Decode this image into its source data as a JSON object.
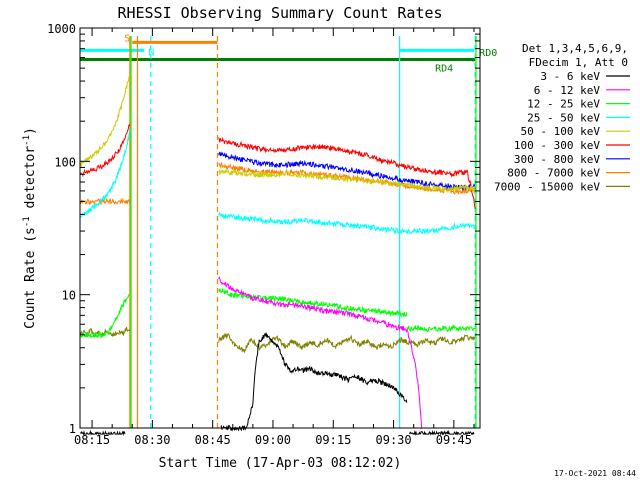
{
  "chart_data": {
    "type": "line",
    "title": "RHESSI Observing Summary Count Rates",
    "xlabel": "Start Time (17-Apr-03 08:12:02)",
    "ylabel": "Count Rate (s",
    "ylabel_sup": "-1",
    "ylabel_mid": " detector",
    "ylabel_end": ")",
    "yscale": "log",
    "xlim_min": [
      12.0,
      111.5
    ],
    "ylim": [
      1,
      1000
    ],
    "xticks": [
      {
        "min": 15,
        "label": "08:15"
      },
      {
        "min": 30,
        "label": "08:30"
      },
      {
        "min": 45,
        "label": "08:45"
      },
      {
        "min": 60,
        "label": "09:00"
      },
      {
        "min": 75,
        "label": "09:15"
      },
      {
        "min": 90,
        "label": "09:30"
      },
      {
        "min": 105,
        "label": "09:45"
      }
    ],
    "yticks": [
      {
        "value": 1,
        "label": "1"
      },
      {
        "value": 10,
        "label": "10"
      },
      {
        "value": 100,
        "label": "100"
      },
      {
        "value": 1000,
        "label": "1000"
      }
    ],
    "legend": {
      "placement": "right",
      "header": [
        "Det 1,3,4,5,6,9,",
        "FDecim 1, Att 0"
      ]
    },
    "series": [
      {
        "name": "3 - 6 keV",
        "color": "#000000",
        "segments": [
          {
            "start": 12.0,
            "end": 23.2,
            "values": [
              0.9,
              0.9
            ]
          },
          {
            "start": 47.0,
            "end": 93.3,
            "values": [
              1.0,
              1.0,
              1.0,
              1.0,
              1.0,
              1.5,
              4.5,
              5.0,
              4.5,
              4.0,
              3.0,
              2.7,
              2.8,
              2.7,
              2.8,
              2.6,
              2.6,
              2.5,
              2.5,
              2.4,
              2.3,
              2.5,
              2.3,
              2.2,
              2.3,
              2.2,
              2.1,
              2.0,
              1.8,
              1.6
            ]
          },
          {
            "start": 94.0,
            "end": 110.0,
            "values": [
              0.9,
              0.9
            ]
          }
        ]
      },
      {
        "name": "6 - 12 keV",
        "color": "#ff00ff",
        "segments": [
          {
            "start": 46.5,
            "end": 93.3,
            "values": [
              13,
              12,
              11,
              10.5,
              10,
              9.5,
              9.3,
              9,
              8.8,
              8.6,
              8.4,
              8.5,
              8.3,
              8.2,
              8.0,
              7.8,
              7.6,
              7.5,
              7.4,
              7.3,
              7.2,
              7.0,
              6.8,
              6.6,
              6.4,
              6.2,
              6.0,
              5.8,
              5.6,
              5.5
            ]
          },
          {
            "start": 93.3,
            "end": 97.0,
            "values": [
              5.5,
              1.0
            ]
          }
        ]
      },
      {
        "name": "12 - 25 keV",
        "color": "#00ff00",
        "segments": [
          {
            "start": 12.0,
            "end": 24.2,
            "values": [
              5,
              5,
              5,
              5,
              5,
              5,
              5,
              5,
              5.5,
              6,
              7,
              8,
              9,
              10
            ]
          },
          {
            "start": 46.5,
            "end": 93.3,
            "values": [
              11,
              10.5,
              10,
              9.8,
              9.7,
              9.6,
              9.5,
              9.5,
              9.4,
              9.3,
              9.2,
              9.0,
              8.9,
              8.8,
              8.7,
              8.6,
              8.5,
              8.3,
              8.2,
              8.0,
              7.9,
              7.8,
              7.7,
              7.6,
              7.5,
              7.5,
              7.4,
              7.3,
              7.2,
              7.1
            ]
          },
          {
            "start": 93.3,
            "end": 110.3,
            "values": [
              5.5,
              5.6,
              5.7,
              5.6,
              5.5,
              5.6,
              5.5,
              5.6,
              5.5,
              5.7,
              5.6,
              5.5,
              5.6,
              5.5
            ]
          }
        ]
      },
      {
        "name": "25 - 50 keV",
        "color": "#00ffff",
        "segments": [
          {
            "start": 12.0,
            "end": 24.5,
            "values": [
              38,
              40,
              42,
              44,
              46,
              49,
              52,
              56,
              62,
              70,
              82,
              100,
              125,
              175
            ]
          },
          {
            "start": 46.5,
            "end": 110.3,
            "values": [
              40,
              39,
              38,
              37.5,
              37,
              36.5,
              36,
              35.5,
              35,
              35.5,
              36,
              35.5,
              35,
              34.5,
              34,
              33.5,
              33,
              32.5,
              32,
              31.5,
              31,
              30.5,
              30,
              30,
              30.5,
              30,
              30,
              31,
              32,
              33,
              33,
              32
            ]
          }
        ]
      },
      {
        "name": "50 - 100 keV",
        "color": "#cccc00",
        "segments": [
          {
            "start": 12.0,
            "end": 24.2,
            "values": [
              95,
              100,
              105,
              110,
              118,
              125,
              135,
              150,
              170,
              200,
              250,
              320,
              420
            ]
          },
          {
            "start": 46.5,
            "end": 110.3,
            "values": [
              84,
              83,
              82,
              81,
              80,
              79,
              79,
              80,
              81,
              80,
              79,
              78,
              77,
              76,
              75,
              74,
              73,
              72,
              71,
              70,
              69,
              68,
              67,
              66,
              65,
              64,
              63,
              62,
              62,
              63,
              64,
              62
            ]
          }
        ]
      },
      {
        "name": "100 - 300 keV",
        "color": "#ff0000",
        "segments": [
          {
            "start": 12.0,
            "end": 24.4,
            "values": [
              80,
              82,
              84,
              86,
              88,
              90,
              93,
              97,
              102,
              110,
              120,
              135,
              160,
              185
            ]
          },
          {
            "start": 46.5,
            "end": 110.3,
            "values": [
              145,
              140,
              136,
              132,
              128,
              124,
              122,
              120,
              121,
              123,
              126,
              128,
              129,
              128,
              126,
              123,
              120,
              117,
              113,
              108,
              104,
              100,
              96,
              92,
              89,
              87,
              85,
              83,
              82,
              80,
              82,
              83,
              45
            ]
          }
        ]
      },
      {
        "name": "300 - 800 keV",
        "color": "#0000ff",
        "segments": [
          {
            "start": 46.5,
            "end": 110.3,
            "values": [
              115,
              110,
              106,
              102,
              99,
              97,
              95,
              94,
              94,
              95,
              96,
              95,
              94,
              92,
              90,
              88,
              86,
              84,
              82,
              79,
              77,
              75,
              73,
              71,
              70,
              68,
              67,
              66,
              65,
              64,
              64,
              65
            ]
          }
        ]
      },
      {
        "name": "800 - 7000 keV",
        "color": "#ff8000",
        "segments": [
          {
            "start": 12.0,
            "end": 24.5,
            "values": [
              50,
              50,
              50,
              50,
              50,
              50,
              50,
              50,
              50,
              50,
              50,
              50,
              50,
              50
            ]
          },
          {
            "start": 46.5,
            "end": 110.3,
            "values": [
              95,
              92,
              89,
              87,
              85,
              84,
              83,
              82,
              82,
              83,
              82,
              81,
              80,
              79,
              78,
              76,
              75,
              74,
              72,
              71,
              70,
              68,
              67,
              65,
              64,
              63,
              62,
              61,
              60,
              59,
              60,
              61
            ]
          }
        ]
      },
      {
        "name": "7000 - 15000 keV",
        "color": "#808000",
        "segments": [
          {
            "start": 12.0,
            "end": 24.4,
            "values": [
              5,
              5.3,
              5,
              5.4,
              5,
              5.2,
              5,
              5.4,
              5.1,
              5,
              5.3,
              5.1,
              5.5,
              5.2
            ]
          },
          {
            "start": 46.5,
            "end": 110.3,
            "values": [
              4.5,
              5,
              4.2,
              3.8,
              4.6,
              4.0,
              4.3,
              4.8,
              4.1,
              4.5,
              4.0,
              4.4,
              4.2,
              4.6,
              4.1,
              4.4,
              4.7,
              4.2,
              4.5,
              4.0,
              4.3,
              4.1,
              4.6,
              4.4,
              4.2,
              4.5,
              4.3,
              4.7,
              4.4,
              4.6,
              4.8,
              4.6
            ]
          }
        ]
      }
    ],
    "annotations": {
      "flag_bars": [
        {
          "label": "S",
          "color": "#ff8000",
          "start": 25.0,
          "end": 46.2,
          "level": 780
        },
        {
          "label": "N",
          "color": "#00ffff",
          "start": 12.0,
          "end": 28.0,
          "level": 680
        },
        {
          "label": "N",
          "color": "#00ffff",
          "start": 91.5,
          "end": 110.0,
          "level": 680
        },
        {
          "label": "RD4",
          "color": "#008000",
          "start": 12.0,
          "end": 110.3,
          "level": 580
        },
        {
          "label": "RD0",
          "color": "#008000",
          "start": 110.3,
          "end": 110.3,
          "level": 650
        }
      ],
      "vlines": [
        {
          "x": 24.4,
          "color": "#ff8000",
          "style": "solid"
        },
        {
          "x": 24.7,
          "color": "#00ff00",
          "style": "solid"
        },
        {
          "x": 26.3,
          "color": "#ff8000",
          "style": "solid"
        },
        {
          "x": 29.6,
          "color": "#00ffff",
          "style": "dashed"
        },
        {
          "x": 46.2,
          "color": "#ff8000",
          "style": "dashed"
        },
        {
          "x": 91.5,
          "color": "#00ffff",
          "style": "solid"
        },
        {
          "x": 110.3,
          "color": "#00ffff",
          "style": "dashed"
        },
        {
          "x": 110.5,
          "color": "#00ff00",
          "style": "solid"
        }
      ]
    },
    "footer_timestamp": "17-Oct-2021 08:44"
  }
}
